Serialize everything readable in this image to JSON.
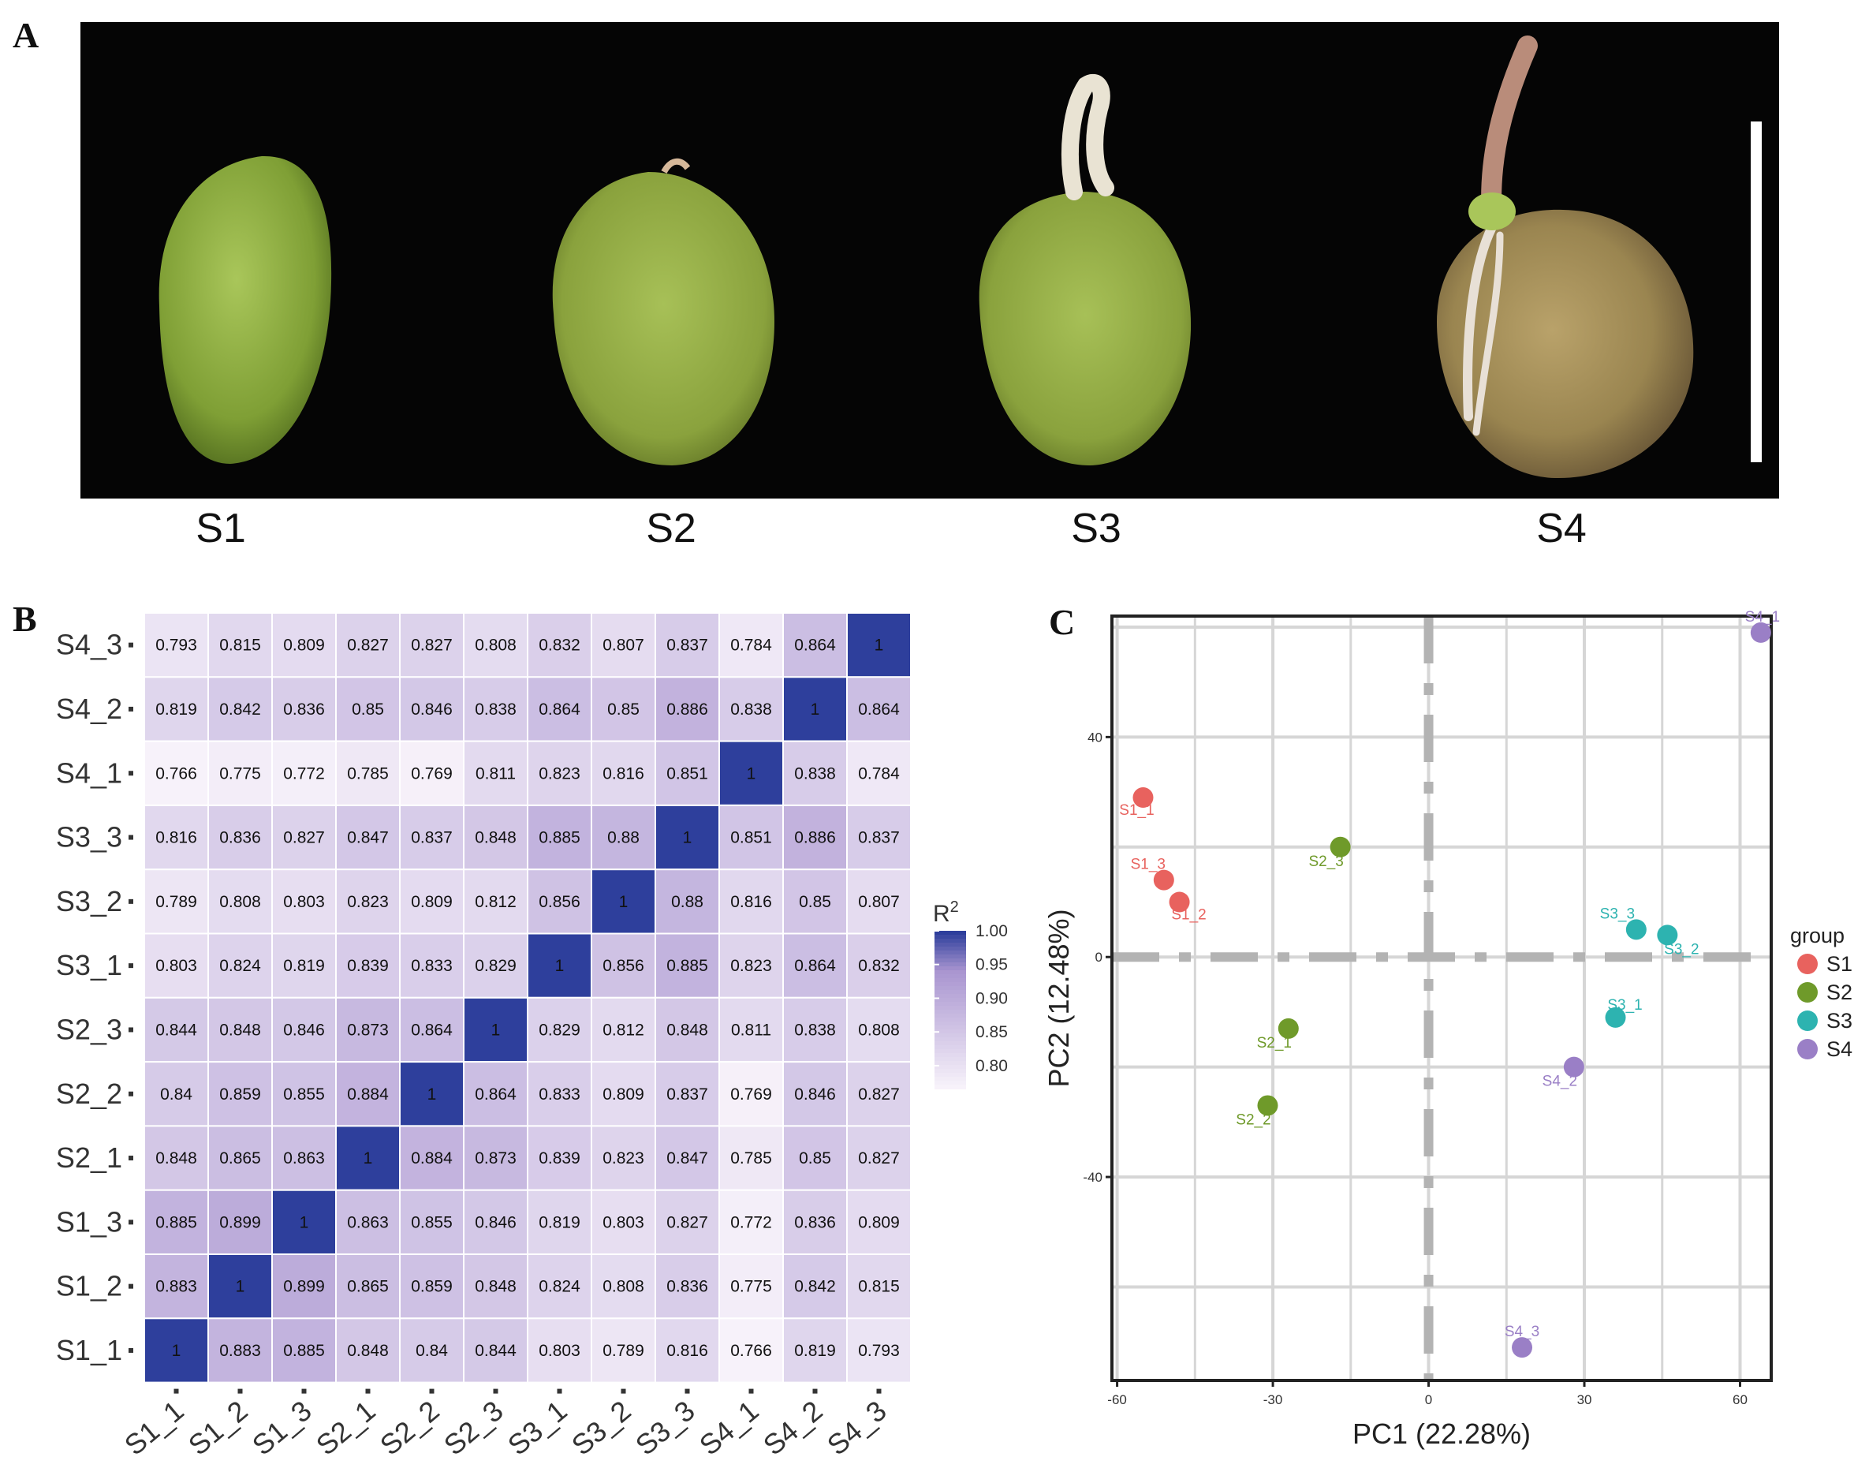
{
  "panels": {
    "a": {
      "letter": "A",
      "stages": [
        "S1",
        "S2",
        "S3",
        "S4"
      ]
    },
    "b": {
      "letter": "B"
    },
    "c": {
      "letter": "C"
    }
  },
  "chart_data": [
    {
      "type": "heatmap",
      "title": "",
      "samples": [
        "S1_1",
        "S1_2",
        "S1_3",
        "S2_1",
        "S2_2",
        "S2_3",
        "S3_1",
        "S3_2",
        "S3_3",
        "S4_1",
        "S4_2",
        "S4_3"
      ],
      "rows_top_to_bottom": [
        "S4_3",
        "S4_2",
        "S4_1",
        "S3_3",
        "S3_2",
        "S3_1",
        "S2_3",
        "S2_2",
        "S2_1",
        "S1_3",
        "S1_2",
        "S1_1"
      ],
      "values": [
        [
          0.793,
          0.815,
          0.809,
          0.827,
          0.827,
          0.808,
          0.832,
          0.807,
          0.837,
          0.784,
          0.864,
          1
        ],
        [
          0.819,
          0.842,
          0.836,
          0.85,
          0.846,
          0.838,
          0.864,
          0.85,
          0.886,
          0.838,
          1,
          0.864
        ],
        [
          0.766,
          0.775,
          0.772,
          0.785,
          0.769,
          0.811,
          0.823,
          0.816,
          0.851,
          1,
          0.838,
          0.784
        ],
        [
          0.816,
          0.836,
          0.827,
          0.847,
          0.837,
          0.848,
          0.885,
          0.88,
          1,
          0.851,
          0.886,
          0.837
        ],
        [
          0.789,
          0.808,
          0.803,
          0.823,
          0.809,
          0.812,
          0.856,
          1,
          0.88,
          0.816,
          0.85,
          0.807
        ],
        [
          0.803,
          0.824,
          0.819,
          0.839,
          0.833,
          0.829,
          1,
          0.856,
          0.885,
          0.823,
          0.864,
          0.832
        ],
        [
          0.844,
          0.848,
          0.846,
          0.873,
          0.864,
          1,
          0.829,
          0.812,
          0.848,
          0.811,
          0.838,
          0.808
        ],
        [
          0.84,
          0.859,
          0.855,
          0.884,
          1,
          0.864,
          0.833,
          0.809,
          0.837,
          0.769,
          0.846,
          0.827
        ],
        [
          0.848,
          0.865,
          0.863,
          1,
          0.884,
          0.873,
          0.839,
          0.823,
          0.847,
          0.785,
          0.85,
          0.827
        ],
        [
          0.885,
          0.899,
          1,
          0.863,
          0.855,
          0.846,
          0.819,
          0.803,
          0.827,
          0.772,
          0.836,
          0.809
        ],
        [
          0.883,
          1,
          0.899,
          0.865,
          0.859,
          0.848,
          0.824,
          0.808,
          0.836,
          0.775,
          0.842,
          0.815
        ],
        [
          1,
          0.883,
          0.885,
          0.848,
          0.84,
          0.844,
          0.803,
          0.789,
          0.816,
          0.766,
          0.819,
          0.793
        ]
      ],
      "legend": {
        "title": "R",
        "title_sup": "2",
        "ticks": [
          "1.00",
          "0.95",
          "0.90",
          "0.85",
          "0.80"
        ],
        "range": [
          0.766,
          1.0
        ],
        "low_color": "#f7f2fa",
        "mid_color": "#a995d0",
        "high_color": "#2e3f9c"
      }
    },
    {
      "type": "scatter",
      "title": "",
      "xlabel": "PC1 (22.28%)",
      "ylabel": "PC2 (12.48%)",
      "xlim": [
        -61,
        66
      ],
      "ylim": [
        -77,
        62
      ],
      "xticks": [
        -60,
        -30,
        0,
        30,
        60
      ],
      "xtick_labels": [
        "-60",
        "-30",
        "0",
        "30",
        "60"
      ],
      "yticks": [
        40,
        0,
        -40
      ],
      "ytick_labels": [
        "40",
        "0",
        "-40"
      ],
      "grid": true,
      "legend_title": "group",
      "series": [
        {
          "name": "S1",
          "color": "#e8625e",
          "points": [
            {
              "label": "S1_1",
              "x": -55,
              "y": 29
            },
            {
              "label": "S1_3",
              "x": -51,
              "y": 14
            },
            {
              "label": "S1_2",
              "x": -48,
              "y": 10
            }
          ]
        },
        {
          "name": "S2",
          "color": "#6f9a2a",
          "points": [
            {
              "label": "S2_3",
              "x": -17,
              "y": 20
            },
            {
              "label": "S2_1",
              "x": -27,
              "y": -13
            },
            {
              "label": "S2_2",
              "x": -31,
              "y": -27
            }
          ]
        },
        {
          "name": "S3",
          "color": "#2db3b0",
          "points": [
            {
              "label": "S3_3",
              "x": 40,
              "y": 5
            },
            {
              "label": "S3_2",
              "x": 46,
              "y": 4
            },
            {
              "label": "S3_1",
              "x": 36,
              "y": -11
            }
          ]
        },
        {
          "name": "S4",
          "color": "#9a7fc6",
          "points": [
            {
              "label": "S4_1",
              "x": 64,
              "y": 59
            },
            {
              "label": "S4_2",
              "x": 28,
              "y": -20
            },
            {
              "label": "S4_3",
              "x": 18,
              "y": -71
            }
          ]
        }
      ]
    }
  ]
}
